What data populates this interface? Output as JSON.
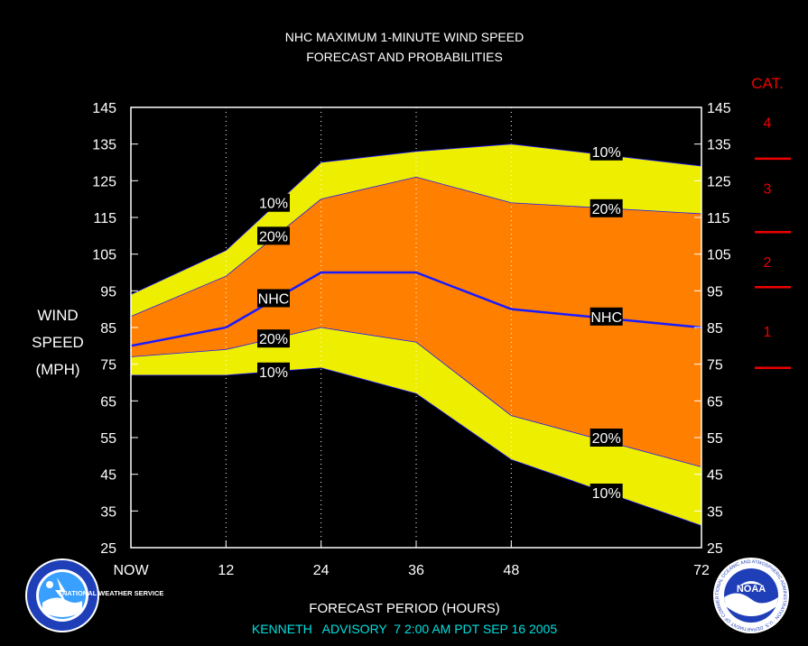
{
  "chart_data": {
    "type": "area",
    "title": "NHC MAXIMUM 1-MINUTE WIND SPEED",
    "subtitle": "FORECAST AND PROBABILITIES",
    "ylabel": [
      "WIND",
      "SPEED",
      "(MPH)"
    ],
    "xlabel": "FORECAST PERIOD (HOURS)",
    "footer": "KENNETH   ADVISORY  7 2:00 AM PDT SEP 16 2005",
    "x_tick_labels": [
      "NOW",
      "12",
      "24",
      "36",
      "48",
      "72"
    ],
    "x_ticks": [
      0,
      12,
      24,
      36,
      48,
      72
    ],
    "xlim": [
      0,
      72
    ],
    "ylim": [
      25,
      145
    ],
    "y_ticks": [
      25,
      35,
      45,
      55,
      65,
      75,
      85,
      95,
      105,
      115,
      125,
      135,
      145
    ],
    "x": [
      0,
      12,
      24,
      36,
      48,
      72
    ],
    "series": [
      {
        "name": "10%",
        "role": "upper",
        "values": [
          94,
          106,
          130,
          133,
          135,
          129
        ]
      },
      {
        "name": "20%",
        "role": "upper",
        "values": [
          88,
          99,
          120,
          126,
          119,
          116
        ]
      },
      {
        "name": "NHC",
        "role": "forecast",
        "values": [
          80,
          85,
          100,
          100,
          90,
          85
        ]
      },
      {
        "name": "20%",
        "role": "lower",
        "values": [
          77,
          79,
          85,
          81,
          61,
          47
        ]
      },
      {
        "name": "10%",
        "role": "lower",
        "values": [
          72,
          72,
          74,
          67,
          49,
          31
        ]
      }
    ],
    "labels": [
      {
        "text": "10%",
        "x": 18,
        "y": 119
      },
      {
        "text": "20%",
        "x": 18,
        "y": 110
      },
      {
        "text": "NHC",
        "x": 18,
        "y": 93
      },
      {
        "text": "20%",
        "x": 18,
        "y": 82
      },
      {
        "text": "10%",
        "x": 18,
        "y": 73
      },
      {
        "text": "10%",
        "x": 60,
        "y": 133
      },
      {
        "text": "20%",
        "x": 60,
        "y": 117.5
      },
      {
        "text": "NHC",
        "x": 60,
        "y": 88
      },
      {
        "text": "20%",
        "x": 60,
        "y": 55
      },
      {
        "text": "10%",
        "x": 60,
        "y": 40
      }
    ],
    "categories_scale": {
      "header": "CAT.",
      "items": [
        {
          "label": "4",
          "y": 141
        },
        {
          "label": "3",
          "y": 123
        },
        {
          "label": "2",
          "y": 103
        },
        {
          "label": "1",
          "y": 84
        }
      ],
      "thresholds": [
        74,
        96,
        111,
        131
      ]
    },
    "colors": {
      "outer_band": "#eeee00",
      "inner_band": "#ff8000",
      "nhc_line": "#1a1aff",
      "category": "#ee0000",
      "footer": "#00e0e0"
    },
    "grid": "dotted vertical at forecast hours"
  },
  "logos": {
    "left": "NATIONAL WEATHER SERVICE",
    "right": "NOAA",
    "right_ring": "NATIONAL OCEANIC AND ATMOSPHERIC ADMINISTRATION · U.S. DEPARTMENT OF COMMERCE"
  }
}
